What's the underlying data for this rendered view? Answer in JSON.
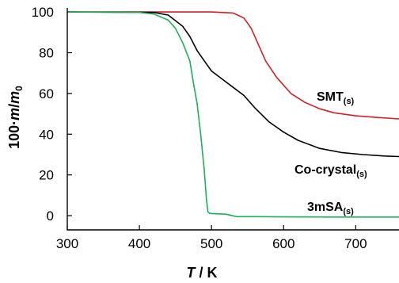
{
  "chart_data": {
    "type": "line",
    "title": "",
    "xlabel": {
      "symbol": "T",
      "unit": "K"
    },
    "ylabel": {
      "prefix": "100·",
      "numerator": "m",
      "denominator": "m",
      "denominator_sub": "0"
    },
    "xlim": [
      300,
      760
    ],
    "ylim": [
      -7,
      102
    ],
    "xticks": [
      300,
      400,
      500,
      600,
      700
    ],
    "yticks": [
      0,
      20,
      40,
      60,
      80,
      100
    ],
    "grid": false,
    "legend": "inline labels at right",
    "series": [
      {
        "name": "SMT",
        "name_sub": "(s)",
        "color": "#d32027",
        "x": [
          300,
          400,
          500,
          530,
          545,
          555,
          565,
          575,
          590,
          610,
          630,
          650,
          670,
          700,
          730,
          760
        ],
        "y": [
          100,
          100,
          100,
          99.5,
          97,
          92,
          84,
          76,
          68,
          60,
          55.5,
          52.5,
          50.5,
          49,
          48.2,
          47.5
        ]
      },
      {
        "name": "Co-crystal",
        "name_sub": "(s)",
        "color": "#000000",
        "x": [
          300,
          420,
          440,
          460,
          470,
          480,
          490,
          500,
          515,
          530,
          545,
          560,
          580,
          600,
          620,
          650,
          680,
          710,
          740,
          760
        ],
        "y": [
          100,
          99.8,
          98.5,
          93,
          88,
          81,
          76,
          71,
          67,
          63,
          59,
          53,
          46,
          41,
          37,
          33,
          31,
          30,
          29.3,
          29
        ]
      },
      {
        "name": "3mSA",
        "name_sub": "(s)",
        "color": "#1bb05a",
        "x": [
          300,
          400,
          420,
          440,
          450,
          460,
          470,
          475,
          480,
          485,
          490,
          493,
          495,
          497,
          500,
          520,
          535,
          560,
          600,
          700,
          760
        ],
        "y": [
          100,
          99.8,
          99,
          96,
          92,
          85,
          76,
          65,
          55,
          40,
          22,
          8,
          2,
          1.2,
          1,
          0.7,
          -0.5,
          -0.5,
          -0.6,
          -0.7,
          -0.7
        ]
      }
    ]
  }
}
